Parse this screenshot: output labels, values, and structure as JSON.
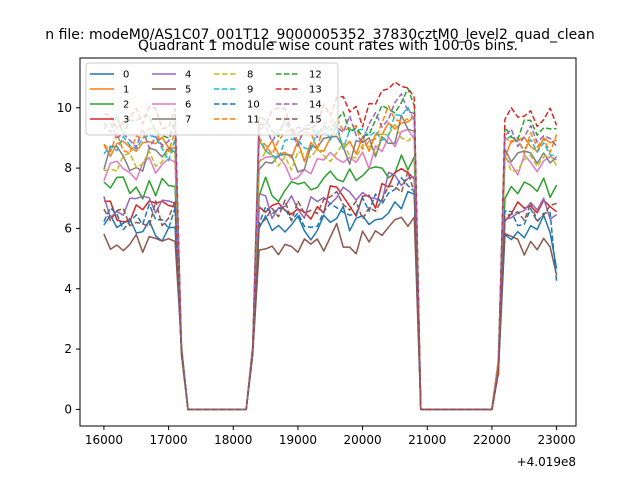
{
  "chart_data": {
    "type": "line",
    "suptitle": "n file: modeM0/AS1C07_001T12_9000005352_37830cztM0_level2_quad_clean",
    "title": "Quadrant 1 module wise count rates with 100.0s bins.",
    "xlabel": "",
    "ylabel": "",
    "x_offset_label": "+4.019e8",
    "xlim": [
      15630,
      23300
    ],
    "ylim": [
      -0.55,
      11.65
    ],
    "x_ticks": [
      16000,
      17000,
      18000,
      19000,
      20000,
      21000,
      22000,
      23000
    ],
    "x_tick_labels": [
      "16000",
      "17000",
      "18000",
      "19000",
      "20000",
      "21000",
      "22000",
      "23000"
    ],
    "y_ticks": [
      0,
      2,
      4,
      6,
      8,
      10
    ],
    "y_tick_labels": [
      "0",
      "2",
      "4",
      "6",
      "8",
      "10"
    ],
    "grid": false,
    "legend_placement": "top-left",
    "legend_columns": 4,
    "segments": [
      [
        16000,
        17300
      ],
      [
        18300,
        20900
      ],
      [
        22100,
        23000
      ]
    ],
    "series": [
      {
        "name": "0",
        "color": "#1f77b4",
        "dash": "solid",
        "base": 6.0
      },
      {
        "name": "1",
        "color": "#ff7f0e",
        "dash": "solid",
        "base": 8.6
      },
      {
        "name": "2",
        "color": "#2ca02c",
        "dash": "solid",
        "base": 7.3
      },
      {
        "name": "3",
        "color": "#d62728",
        "dash": "solid",
        "base": 6.6
      },
      {
        "name": "4",
        "color": "#9467bd",
        "dash": "solid",
        "base": 6.7
      },
      {
        "name": "5",
        "color": "#8c564b",
        "dash": "solid",
        "base": 5.4
      },
      {
        "name": "6",
        "color": "#e377c2",
        "dash": "solid",
        "base": 8.0
      },
      {
        "name": "7",
        "color": "#7f7f7f",
        "dash": "solid",
        "base": 8.3
      },
      {
        "name": "8",
        "color": "#bcbd22",
        "dash": "dashed",
        "base": 8.2
      },
      {
        "name": "9",
        "color": "#17becf",
        "dash": "dashed",
        "base": 8.7
      },
      {
        "name": "10",
        "color": "#1f77b4",
        "dash": "dashed",
        "base": 6.4
      },
      {
        "name": "11",
        "color": "#ff7f0e",
        "dash": "dashed",
        "base": 8.9
      },
      {
        "name": "12",
        "color": "#2ca02c",
        "dash": "dashed",
        "base": 9.3
      },
      {
        "name": "13",
        "color": "#d62728",
        "dash": "dashed",
        "base": 9.6
      },
      {
        "name": "14",
        "color": "#9467bd",
        "dash": "dashed",
        "base": 9.1
      },
      {
        "name": "15",
        "color": "#8c564b",
        "dash": "dashed",
        "base": 6.5
      }
    ]
  }
}
